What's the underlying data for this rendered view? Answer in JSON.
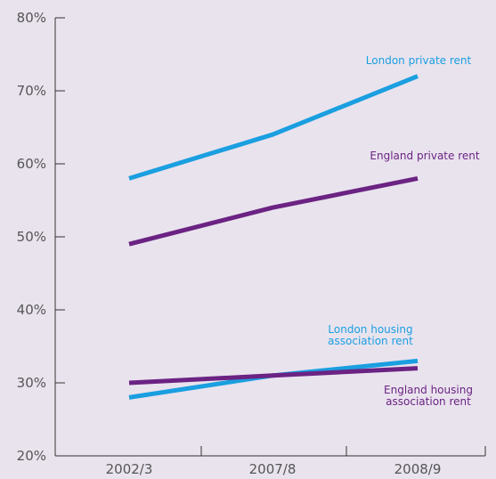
{
  "chart_data": {
    "type": "line",
    "categories": [
      "2002/3",
      "2007/8",
      "2008/9"
    ],
    "ylim": [
      20,
      80
    ],
    "yticks": [
      20,
      30,
      40,
      50,
      60,
      70,
      80
    ],
    "ytick_labels": [
      "20%",
      "30%",
      "40%",
      "50%",
      "60%",
      "70%",
      "80%"
    ],
    "grid": false,
    "series": [
      {
        "name": "London private rent",
        "label_lines": [
          "London private rent"
        ],
        "color": "#1a9fe0",
        "values": [
          58,
          64,
          72
        ]
      },
      {
        "name": "England private rent",
        "label_lines": [
          "England private rent"
        ],
        "color": "#6b2383",
        "values": [
          49,
          54,
          58
        ]
      },
      {
        "name": "London housing association rent",
        "label_lines": [
          "London housing",
          "association rent"
        ],
        "color": "#1a9fe0",
        "values": [
          28,
          31,
          33
        ]
      },
      {
        "name": "England housing association rent",
        "label_lines": [
          "England housing",
          "association rent"
        ],
        "color": "#6b2383",
        "values": [
          30,
          31,
          32
        ]
      }
    ]
  }
}
